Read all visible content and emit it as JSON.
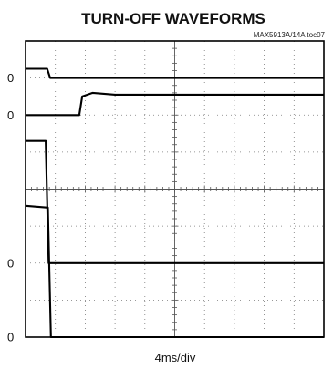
{
  "chart_data": {
    "type": "line",
    "title": "TURN-OFF WAVEFORMS",
    "subtitle": "MAX5913A/14A toc07",
    "xlabel": "4ms/div",
    "ylabel": "",
    "grid": true,
    "divisions": {
      "x": 10,
      "y": 8
    },
    "xlim": [
      0,
      40
    ],
    "ylim": [
      0,
      8
    ],
    "zero_labels": [
      "0",
      "0",
      "0",
      "0"
    ],
    "series": [
      {
        "values": [
          [
            0,
            7.25
          ],
          [
            2.9,
            7.25
          ],
          [
            3.3,
            7.0
          ],
          [
            40,
            7.0
          ]
        ],
        "zero_ref": 7.0,
        "zero_label_index": 0
      },
      {
        "values": [
          [
            0,
            6.0
          ],
          [
            7.2,
            6.0
          ],
          [
            7.6,
            6.5
          ],
          [
            9.0,
            6.6
          ],
          [
            12.0,
            6.55
          ],
          [
            40,
            6.55
          ]
        ],
        "zero_ref": 6.0,
        "zero_label_index": 1
      },
      {
        "values": [
          [
            0,
            5.3
          ],
          [
            2.7,
            5.3
          ],
          [
            3.1,
            2.0
          ],
          [
            40,
            2.0
          ]
        ],
        "zero_ref": 2.0,
        "zero_label_index": 2
      },
      {
        "values": [
          [
            0,
            3.55
          ],
          [
            3.0,
            3.5
          ],
          [
            3.4,
            0.0
          ],
          [
            40,
            0.0
          ]
        ],
        "zero_ref": 0.0,
        "zero_label_index": 3
      }
    ]
  }
}
